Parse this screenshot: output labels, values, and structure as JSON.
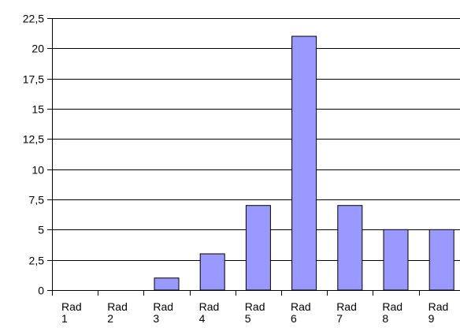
{
  "chart_data": {
    "type": "bar",
    "categories": [
      [
        "Rad",
        "1"
      ],
      [
        "Rad",
        "2"
      ],
      [
        "Rad",
        "3"
      ],
      [
        "Rad",
        "4"
      ],
      [
        "Rad",
        "5"
      ],
      [
        "Rad",
        "6"
      ],
      [
        "Rad",
        "7"
      ],
      [
        "Rad",
        "8"
      ],
      [
        "Rad",
        "9"
      ]
    ],
    "values": [
      0,
      0,
      1,
      3,
      7,
      21,
      7,
      5,
      5
    ],
    "y_ticks": [
      "0",
      "2,5",
      "5",
      "7,5",
      "10",
      "12,5",
      "15",
      "17,5",
      "20",
      "22,5"
    ],
    "ylim": [
      0,
      22.5
    ],
    "grid": true,
    "legend": "none",
    "colors": {
      "bar_fill": "#9999ff",
      "bar_stroke": "#000000",
      "grid": "#000000",
      "axis": "#000000"
    }
  }
}
